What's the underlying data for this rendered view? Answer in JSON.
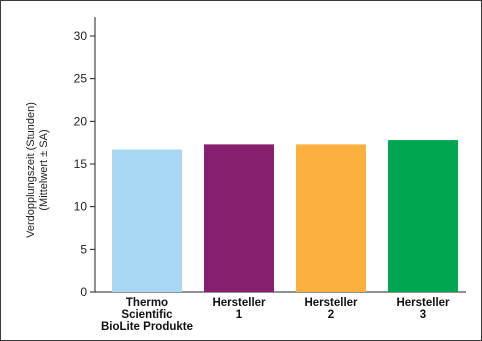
{
  "chart_data": {
    "type": "bar",
    "ylabel_lines": [
      "Verdopplungszeit (Stunden)",
      "(Mittelwert ± SA)"
    ],
    "ylim": [
      0,
      30
    ],
    "yticks": [
      0,
      5,
      10,
      15,
      20,
      25,
      30
    ],
    "grid": false,
    "categories": [
      {
        "lines": [
          "Thermo",
          "Scientific",
          "BioLite Produkte"
        ]
      },
      {
        "lines": [
          "Hersteller",
          "1"
        ]
      },
      {
        "lines": [
          "Hersteller",
          "2"
        ]
      },
      {
        "lines": [
          "Hersteller",
          "3"
        ]
      }
    ],
    "values": [
      16.7,
      17.3,
      17.3,
      17.8
    ],
    "colors": [
      "#a8d8f3",
      "#861f6e",
      "#fbb040",
      "#00a650"
    ]
  }
}
